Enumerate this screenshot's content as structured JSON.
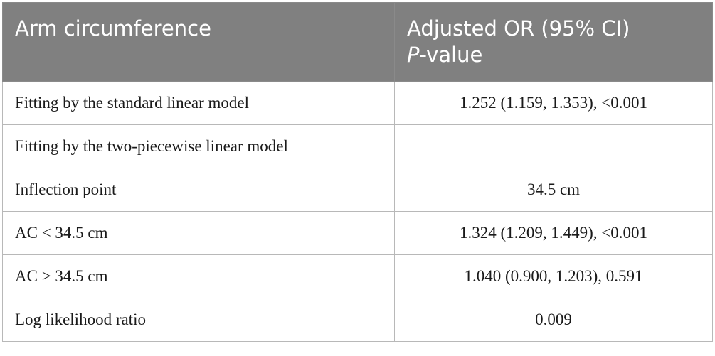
{
  "table": {
    "header": [
      "Arm circumference",
      "Adjusted OR (95% CI)"
    ],
    "header_line2": [
      "P",
      "-value"
    ],
    "rows": [
      [
        "Fitting by the standard linear model",
        "1.252 (1.159, 1.353), <0.001"
      ],
      [
        "Fitting by the two-piecewise linear model"
      ],
      [
        "Inflection point",
        "34.5 cm"
      ],
      [
        "AC < 34.5 cm",
        "1.324 (1.209, 1.449), <0.001"
      ],
      [
        "AC > 34.5 cm",
        "1.040 (0.900, 1.203), 0.591"
      ],
      [
        "Log likelihood ratio",
        "0.009"
      ]
    ]
  }
}
